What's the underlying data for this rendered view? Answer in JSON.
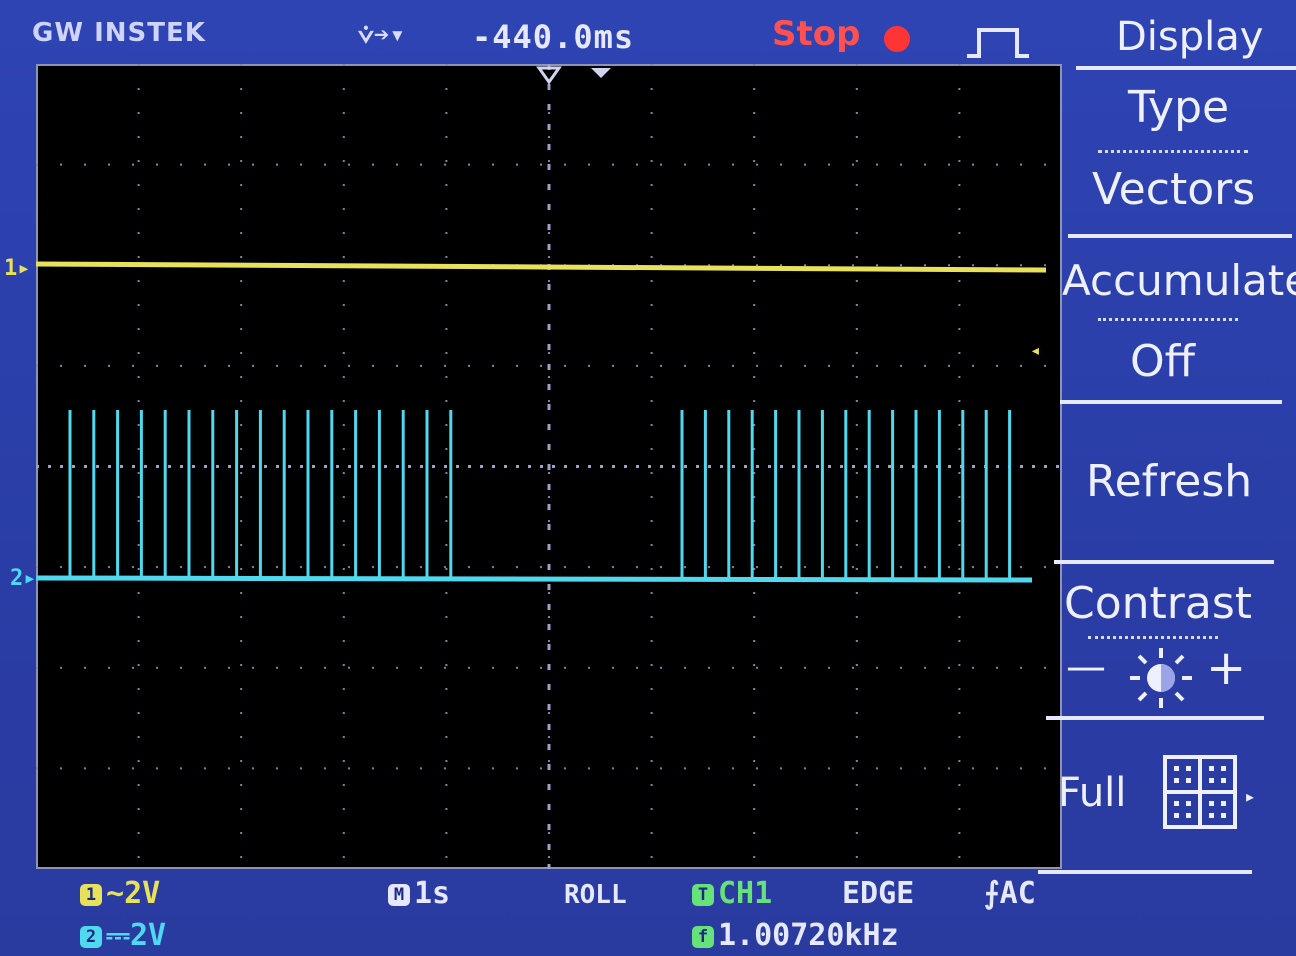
{
  "header": {
    "brand": "GW INSTEK",
    "trigger_icons": "⩒➔▾",
    "horizontal_position": "-440.0ms",
    "run_status": "Stop",
    "acquire_icon": "pulse-waveform-icon"
  },
  "channel_markers": {
    "ch1": "1",
    "ch2": "2"
  },
  "menu": {
    "title": "Display",
    "type_label": "Type",
    "type_value": "Vectors",
    "accumulate_label": "Accumulate",
    "accumulate_value": "Off",
    "refresh_label": "Refresh",
    "contrast_label": "Contrast",
    "contrast_minus": "—",
    "contrast_plus": "+",
    "grid_label": "Full"
  },
  "status_bar": {
    "ch1_badge": "1",
    "ch1_coupling_icon": "ac-coupling-icon",
    "ch1_coupling": "∼",
    "ch1_scale": "2V",
    "ch2_badge": "2",
    "ch2_coupling_icon": "dc-coupling-icon",
    "ch2_coupling": "⎓",
    "ch2_scale": "2V",
    "timebase_badge": "M",
    "timebase": "1s",
    "mode": "ROLL",
    "trigger_badge": "T",
    "trigger_source": "CH1",
    "trigger_type": "EDGE",
    "trigger_slope": "⨍",
    "trigger_coupling": "AC",
    "freq_badge": "f",
    "frequency": "1.00720kHz"
  },
  "colors": {
    "ch1": "#e8e15a",
    "ch2": "#4fd8ee",
    "background": "#2b3fa8",
    "stop": "#ff3535"
  }
}
